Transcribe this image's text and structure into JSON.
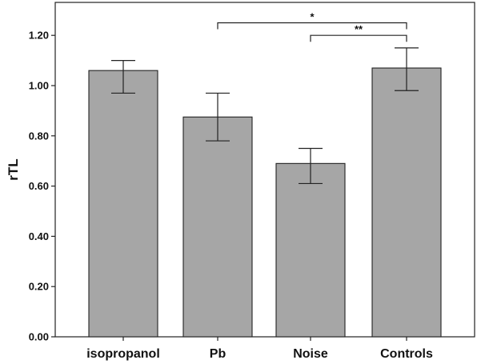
{
  "chart_data": {
    "type": "bar",
    "categories": [
      "isopropanol",
      "Pb",
      "Noise",
      "Controls"
    ],
    "values": [
      1.06,
      0.875,
      0.69,
      1.07
    ],
    "error_low": [
      0.97,
      0.78,
      0.61,
      0.98
    ],
    "error_high": [
      1.1,
      0.97,
      0.75,
      1.15
    ],
    "ylabel": "rTL",
    "xlabel": "",
    "ylim": [
      0,
      1.3
    ],
    "yticks": [
      "0.00",
      "0.20",
      "0.40",
      "0.60",
      "0.80",
      "1.00",
      "1.20"
    ],
    "ytick_values": [
      0,
      0.2,
      0.4,
      0.6,
      0.8,
      1.0,
      1.2
    ],
    "grid": false,
    "bar_color": "#a6a6a6",
    "significance": [
      {
        "from": "Pb",
        "to": "Controls",
        "label": "*",
        "y": 1.25
      },
      {
        "from": "Noise",
        "to": "Controls",
        "label": "**",
        "y": 1.2
      }
    ]
  }
}
